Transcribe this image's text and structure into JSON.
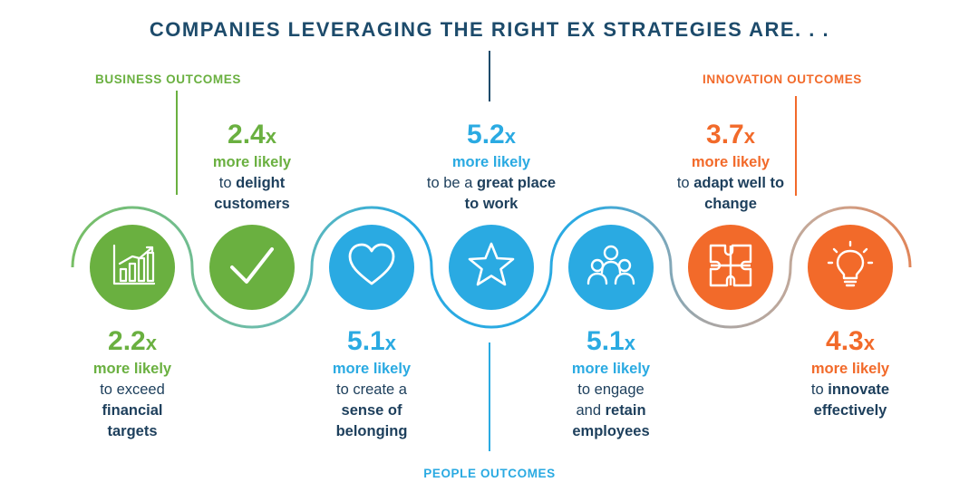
{
  "title": "COMPANIES LEVERAGING THE RIGHT EX STRATEGIES ARE. . .",
  "categories": {
    "business": "BUSINESS OUTCOMES",
    "innovation": "INNOVATION OUTCOMES",
    "people": "PEOPLE OUTCOMES"
  },
  "colors": {
    "title": "#1d4b6b",
    "business": "#6ab040",
    "people": "#2aaae2",
    "innovation": "#f26a2a",
    "text": "#1d3f5c"
  },
  "outcomes": [
    {
      "icon": "bar-chart-icon",
      "multiplier": "2.2",
      "suffix": "x",
      "likely": "more likely",
      "pre": "to exceed",
      "bold": "financial targets",
      "post": ""
    },
    {
      "icon": "checkmark-icon",
      "multiplier": "2.4",
      "suffix": "x",
      "likely": "more likely",
      "pre": "to",
      "bold": "delight customers",
      "post": ""
    },
    {
      "icon": "heart-icon",
      "multiplier": "5.1",
      "suffix": "x",
      "likely": "more likely",
      "pre": "to create a",
      "bold": "sense of belonging",
      "post": ""
    },
    {
      "icon": "star-icon",
      "multiplier": "5.2",
      "suffix": "x",
      "likely": "more likely",
      "pre": "to be a",
      "bold": "great place to work",
      "post": ""
    },
    {
      "icon": "people-group-icon",
      "multiplier": "5.1",
      "suffix": "x",
      "likely": "more likely",
      "pre": "to engage and",
      "bold": "retain employees",
      "post": ""
    },
    {
      "icon": "puzzle-icon",
      "multiplier": "3.7",
      "suffix": "x",
      "likely": "more likely",
      "pre": "to",
      "bold": "adapt well to change",
      "post": ""
    },
    {
      "icon": "lightbulb-icon",
      "multiplier": "4.3",
      "suffix": "x",
      "likely": "more likely",
      "pre": "to",
      "bold": "innovate effectively",
      "post": ""
    }
  ]
}
